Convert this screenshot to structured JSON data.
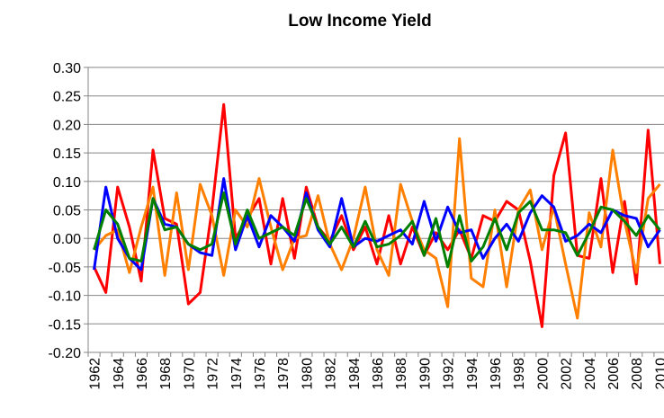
{
  "chart_data": {
    "type": "line",
    "title": "Low Income Yield",
    "x": [
      1962,
      1963,
      1964,
      1965,
      1966,
      1967,
      1968,
      1969,
      1970,
      1971,
      1972,
      1973,
      1974,
      1975,
      1976,
      1977,
      1978,
      1979,
      1980,
      1981,
      1982,
      1983,
      1984,
      1985,
      1986,
      1987,
      1988,
      1989,
      1990,
      1991,
      1992,
      1993,
      1994,
      1995,
      1996,
      1997,
      1998,
      1999,
      2000,
      2001,
      2002,
      2003,
      2004,
      2005,
      2006,
      2007,
      2008,
      2009,
      2010
    ],
    "xlim": [
      1961.5,
      2010.5
    ],
    "xticks": [
      1962,
      1964,
      1966,
      1968,
      1970,
      1972,
      1974,
      1976,
      1978,
      1980,
      1982,
      1984,
      1986,
      1988,
      1990,
      1992,
      1994,
      1996,
      1998,
      2000,
      2002,
      2004,
      2006,
      2008,
      2010
    ],
    "ylim": [
      -0.2,
      0.3
    ],
    "yticks": [
      {
        "value": -0.2,
        "label": "-0.20"
      },
      {
        "value": -0.15,
        "label": "-0.15"
      },
      {
        "value": -0.1,
        "label": "-0.10"
      },
      {
        "value": -0.05,
        "label": "-0.05"
      },
      {
        "value": 0,
        "label": "0.00"
      },
      {
        "value": 0.05,
        "label": "0.05"
      },
      {
        "value": 0.1,
        "label": "0.10"
      },
      {
        "value": 0.15,
        "label": "0.15"
      },
      {
        "value": 0.2,
        "label": "0.20"
      },
      {
        "value": 0.25,
        "label": "0.25"
      },
      {
        "value": 0.3,
        "label": "0.30"
      }
    ],
    "grid": true,
    "series": [
      {
        "color": "#ff0000",
        "values": [
          -0.05,
          -0.095,
          0.09,
          0.02,
          -0.075,
          0.155,
          0.035,
          0.025,
          -0.115,
          -0.095,
          0.05,
          0.235,
          0.0,
          0.035,
          0.07,
          -0.045,
          0.07,
          -0.035,
          0.09,
          0.02,
          -0.005,
          0.04,
          -0.02,
          0.02,
          -0.045,
          0.04,
          -0.045,
          0.02,
          -0.03,
          0.01,
          -0.02,
          0.015,
          -0.035,
          0.04,
          0.03,
          0.065,
          0.05,
          -0.04,
          -0.155,
          0.11,
          0.185,
          -0.03,
          -0.035,
          0.105,
          -0.06,
          0.065,
          -0.08,
          0.19,
          -0.045
        ]
      },
      {
        "color": "#ff7f00",
        "values": [
          -0.02,
          0.005,
          0.015,
          -0.06,
          0.02,
          0.09,
          -0.065,
          0.08,
          -0.055,
          0.095,
          0.04,
          -0.065,
          0.05,
          0.02,
          0.105,
          0.02,
          -0.055,
          0.0,
          0.005,
          0.075,
          -0.01,
          -0.055,
          0.0,
          0.09,
          -0.02,
          -0.065,
          0.095,
          0.03,
          -0.02,
          -0.035,
          -0.12,
          0.175,
          -0.07,
          -0.085,
          0.05,
          -0.085,
          0.05,
          0.085,
          -0.02,
          0.055,
          -0.045,
          -0.14,
          0.045,
          -0.015,
          0.155,
          0.03,
          -0.06,
          0.07,
          0.095
        ]
      },
      {
        "color": "#0000ff",
        "values": [
          -0.055,
          0.09,
          0.0,
          -0.035,
          -0.055,
          0.07,
          0.025,
          0.02,
          -0.01,
          -0.025,
          -0.03,
          0.105,
          -0.02,
          0.04,
          -0.015,
          0.04,
          0.02,
          -0.005,
          0.08,
          0.015,
          -0.015,
          0.07,
          -0.015,
          0.0,
          -0.005,
          0.005,
          0.015,
          -0.01,
          0.065,
          -0.005,
          0.055,
          0.01,
          0.015,
          -0.035,
          0.0,
          0.025,
          -0.005,
          0.045,
          0.075,
          0.055,
          -0.005,
          0.005,
          0.025,
          0.01,
          0.05,
          0.04,
          0.035,
          -0.015,
          0.015
        ]
      },
      {
        "color": "#008000",
        "values": [
          -0.02,
          0.05,
          0.025,
          -0.035,
          -0.04,
          0.07,
          0.015,
          0.02,
          -0.01,
          -0.02,
          -0.01,
          0.08,
          -0.01,
          0.05,
          0.0,
          0.01,
          0.02,
          0.005,
          0.07,
          0.02,
          -0.01,
          0.02,
          -0.015,
          0.03,
          -0.015,
          -0.01,
          0.005,
          0.03,
          -0.03,
          0.035,
          -0.05,
          0.04,
          -0.04,
          -0.015,
          0.035,
          -0.02,
          0.045,
          0.065,
          0.015,
          0.015,
          0.01,
          -0.03,
          0.01,
          0.055,
          0.05,
          0.03,
          0.005,
          0.04,
          0.015
        ]
      }
    ]
  }
}
